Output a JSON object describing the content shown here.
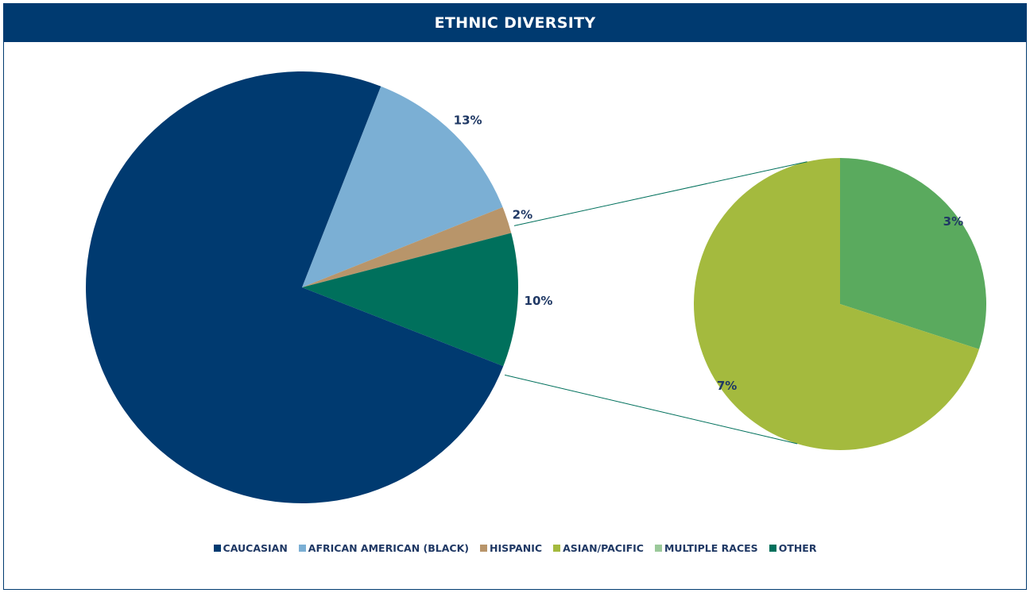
{
  "header": {
    "title": "ETHNIC DIVERSITY"
  },
  "chart_data": {
    "type": "pie",
    "title": "ETHNIC DIVERSITY",
    "subtype": "pie-of-pie",
    "categories": [
      "CAUCASIAN",
      "AFRICAN AMERICAN (BLACK)",
      "HISPANIC",
      "ASIAN/PACIFIC",
      "MULTIPLE RACES",
      "OTHER"
    ],
    "main_pie": {
      "slices": [
        {
          "category": "AFRICAN AMERICAN (BLACK)",
          "value": 13,
          "label": "13%",
          "color": "#7bafd4"
        },
        {
          "category": "HISPANIC",
          "value": 2,
          "label": "2%",
          "color": "#b8956a"
        },
        {
          "category": "OTHER",
          "value": 10,
          "label": "10%",
          "color": "#00705c"
        },
        {
          "category": "CAUCASIAN",
          "value": 75,
          "label": "75%",
          "color": "#003a70"
        }
      ]
    },
    "secondary_pie": {
      "slices": [
        {
          "category": "MULTIPLE RACES",
          "value": 3,
          "label": "3%",
          "color": "#5aaa5e"
        },
        {
          "category": "ASIAN/PACIFIC",
          "value": 7,
          "label": "7%",
          "color": "#a4ba3e"
        }
      ]
    },
    "legend": {
      "placement": "bottom",
      "items": [
        {
          "label": "CAUCASIAN",
          "color": "#003a70"
        },
        {
          "label": "AFRICAN AMERICAN (BLACK)",
          "color": "#7bafd4"
        },
        {
          "label": "HISPANIC",
          "color": "#b8956a"
        },
        {
          "label": "ASIAN/PACIFIC",
          "color": "#a4ba3e"
        },
        {
          "label": "MULTIPLE RACES",
          "color": "#9bc99a"
        },
        {
          "label": "OTHER",
          "color": "#00705c"
        }
      ]
    },
    "connector_color": "#00705c"
  }
}
